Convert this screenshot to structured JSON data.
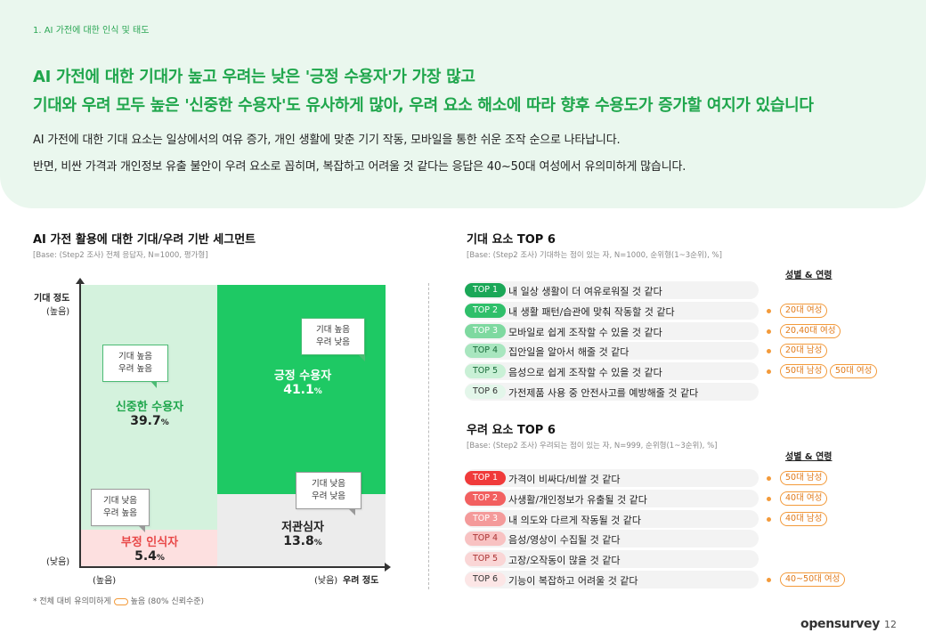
{
  "section_label": "1. AI 가전에 대한 인식 및 태도",
  "headline": {
    "line1": "AI 가전에 대한 기대가 높고 우려는 낮은 '긍정 수용자'가 가장 많고",
    "line2": "기대와 우려 모두 높은 '신중한 수용자'도 유사하게 많아, 우려 요소 해소에 따라 향후 수용도가 증가할 여지가 있습니다"
  },
  "description": {
    "line1": "AI 가전에 대한 기대 요소는 일상에서의 여유 증가, 개인 생활에 맞춘 기기 작동, 모바일을 통한 쉬운 조작 순으로 나타납니다.",
    "line2": "반면, 비싼 가격과 개인정보 유출 불안이 우려 요소로 꼽히며, 복잡하고 어려울 것 같다는 응답은 40~50대 여성에서 유의미하게 많습니다."
  },
  "segment_chart": {
    "title": "AI 가전 활용에 대한 기대/우려 기반 세그먼트",
    "base": "[Base: (Step2 조사) 전체 응답자, N=1000, 평가형]",
    "y_axis": {
      "title": "기대 정도",
      "high": "(높음)",
      "low": "(낮음)"
    },
    "x_axis": {
      "title": "우려 정도",
      "high": "(높음)",
      "low": "(낮음)"
    },
    "segments": {
      "cautious": {
        "name": "신중한 수용자",
        "value": "39.7",
        "unit": "%",
        "callout_1": "기대 높음",
        "callout_2": "우려 높음"
      },
      "positive": {
        "name": "긍정 수용자",
        "value": "41.1",
        "unit": "%",
        "callout_1": "기대 높음",
        "callout_2": "우려 낮음"
      },
      "negative": {
        "name": "부정 인식자",
        "value": "5.4",
        "unit": "%",
        "callout_1": "기대 낮음",
        "callout_2": "우려 높음"
      },
      "indifferent": {
        "name": "저관심자",
        "value": "13.8",
        "unit": "%",
        "callout_1": "기대 낮음",
        "callout_2": "우려 낮음"
      }
    },
    "colors": {
      "cautious": "#d4f2dd",
      "positive": "#1ec964",
      "negative": "#fde0e0",
      "indifferent": "#ececec"
    }
  },
  "expect_top6": {
    "title": "기대 요소 TOP 6",
    "base": "[Base: (Step2 조사) 기대하는 점이 있는 자, N=1000, 순위형(1~3순위), %]",
    "sub_head": "성별 & 연령",
    "items": [
      {
        "rank": "TOP 1",
        "text": "내 일상 생활이 더 여유로워질 것 같다",
        "tags": []
      },
      {
        "rank": "TOP 2",
        "text": "내 생활 패턴/습관에 맞춰 작동할 것 같다",
        "tags": [
          "20대 여성"
        ]
      },
      {
        "rank": "TOP 3",
        "text": "모바일로 쉽게 조작할 수 있을 것 같다",
        "tags": [
          "20,40대 여성"
        ]
      },
      {
        "rank": "TOP 4",
        "text": "집안일을 알아서 해줄 것 같다",
        "tags": [
          "20대 남성"
        ]
      },
      {
        "rank": "TOP 5",
        "text": "음성으로 쉽게 조작할 수 있을 것 같다",
        "tags": [
          "50대 남성",
          "50대 여성"
        ]
      },
      {
        "rank": "TOP 6",
        "text": "가전제품 사용 중 안전사고를 예방해줄 것 같다",
        "tags": []
      }
    ]
  },
  "concern_top6": {
    "title": "우려 요소 TOP 6",
    "base": "[Base: (Step2 조사) 우려되는 점이 있는 자, N=999, 순위형(1~3순위), %]",
    "sub_head": "성별 & 연령",
    "items": [
      {
        "rank": "TOP 1",
        "text": "가격이 비싸다/비쌀 것 같다",
        "tags": [
          "50대 남성"
        ]
      },
      {
        "rank": "TOP 2",
        "text": "사생활/개인정보가 유출될 것 같다",
        "tags": [
          "40대 여성"
        ]
      },
      {
        "rank": "TOP 3",
        "text": "내 의도와 다르게 작동될 것 같다",
        "tags": [
          "40대 남성"
        ]
      },
      {
        "rank": "TOP 4",
        "text": "음성/영상이 수집될 것 같다",
        "tags": []
      },
      {
        "rank": "TOP 5",
        "text": "고장/오작동이 많을 것 같다",
        "tags": []
      },
      {
        "rank": "TOP 6",
        "text": "기능이 복잡하고 어려울 것 같다",
        "tags": [
          "40~50대 여성"
        ]
      }
    ]
  },
  "footnote": {
    "prefix": "* 전체 대비 유의미하게",
    "suffix": "높음 (80% 신뢰수준)"
  },
  "brand": "opensurvey",
  "page_number": "12"
}
